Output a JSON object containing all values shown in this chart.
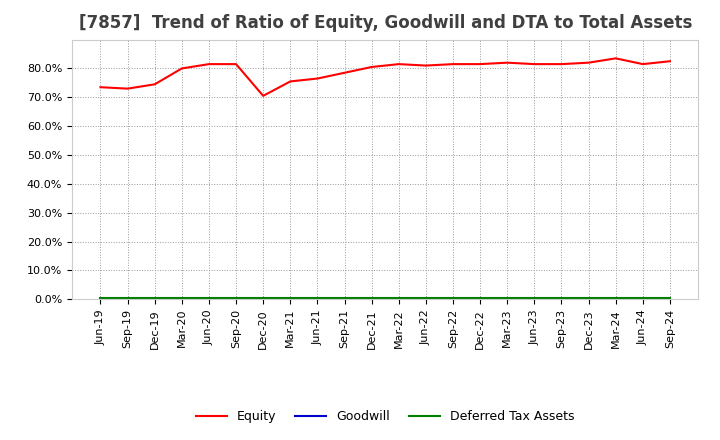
{
  "title": "[7857]  Trend of Ratio of Equity, Goodwill and DTA to Total Assets",
  "x_labels": [
    "Jun-19",
    "Sep-19",
    "Dec-19",
    "Mar-20",
    "Jun-20",
    "Sep-20",
    "Dec-20",
    "Mar-21",
    "Jun-21",
    "Sep-21",
    "Dec-21",
    "Mar-22",
    "Jun-22",
    "Sep-22",
    "Dec-22",
    "Mar-23",
    "Jun-23",
    "Sep-23",
    "Dec-23",
    "Mar-24",
    "Jun-24",
    "Sep-24"
  ],
  "equity": [
    73.5,
    73.0,
    74.5,
    80.0,
    81.5,
    81.5,
    70.5,
    75.5,
    76.5,
    78.5,
    80.5,
    81.5,
    81.0,
    81.5,
    81.5,
    82.0,
    81.5,
    81.5,
    82.0,
    83.5,
    81.5,
    82.5
  ],
  "goodwill": [
    0.0,
    0.0,
    0.0,
    0.0,
    0.0,
    0.0,
    0.0,
    0.0,
    0.0,
    0.0,
    0.0,
    0.0,
    0.0,
    0.0,
    0.0,
    0.0,
    0.0,
    0.0,
    0.0,
    0.0,
    0.0,
    0.0
  ],
  "dta": [
    0.5,
    0.5,
    0.5,
    0.5,
    0.5,
    0.5,
    0.5,
    0.5,
    0.5,
    0.5,
    0.5,
    0.5,
    0.5,
    0.5,
    0.5,
    0.5,
    0.5,
    0.5,
    0.5,
    0.5,
    0.5,
    0.5
  ],
  "equity_color": "#FF0000",
  "goodwill_color": "#0000CC",
  "dta_color": "#008000",
  "ylim_min": 0,
  "ylim_max": 90,
  "yticks": [
    0,
    10,
    20,
    30,
    40,
    50,
    60,
    70,
    80
  ],
  "bg_color": "#FFFFFF",
  "plot_bg_color": "#FFFFFF",
  "grid_color": "#999999",
  "title_fontsize": 12,
  "title_color": "#404040",
  "tick_fontsize": 8,
  "legend_labels": [
    "Equity",
    "Goodwill",
    "Deferred Tax Assets"
  ],
  "legend_colors": [
    "#FF0000",
    "#0000CC",
    "#008000"
  ]
}
